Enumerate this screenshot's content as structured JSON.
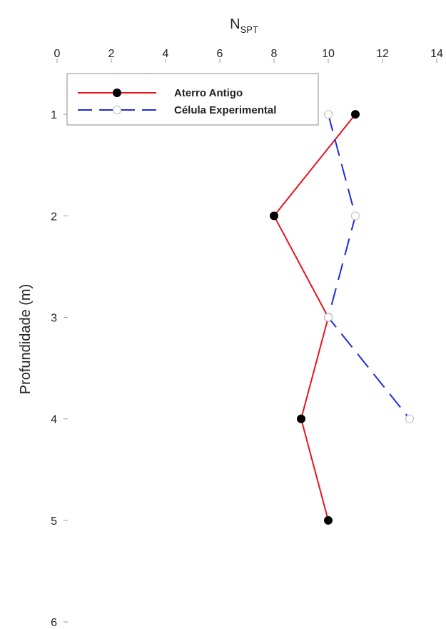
{
  "chart_data": {
    "type": "line",
    "title": "",
    "xlabel": {
      "main": "N",
      "sub": "SPT"
    },
    "ylabel": "Profundidade (m)",
    "xlim": [
      0,
      14
    ],
    "ylim": [
      0,
      6
    ],
    "x_axis_position": "top",
    "y_axis_inverted": true,
    "xticks": [
      "0",
      "2",
      "4",
      "6",
      "8",
      "10",
      "12",
      "14"
    ],
    "yticks": [
      "1",
      "2",
      "3",
      "4",
      "5",
      "6"
    ],
    "grid": false,
    "legend_position": "top-left",
    "series": [
      {
        "name": "Aterro Antigo",
        "color": "#e8141c",
        "line_style": "solid",
        "marker": "filled-circle",
        "marker_color": "#000000",
        "points": [
          {
            "x": 11,
            "y": 1
          },
          {
            "x": 8,
            "y": 2
          },
          {
            "x": 10,
            "y": 3
          },
          {
            "x": 9,
            "y": 4
          },
          {
            "x": 10,
            "y": 5
          }
        ]
      },
      {
        "name": "Célula Experimental",
        "color": "#1f2bd6",
        "line_style": "dashed",
        "marker": "open-circle",
        "marker_color": "#ffffff",
        "points": [
          {
            "x": 10,
            "y": 1
          },
          {
            "x": 11,
            "y": 2
          },
          {
            "x": 10,
            "y": 3
          },
          {
            "x": 13,
            "y": 4
          }
        ]
      }
    ]
  }
}
